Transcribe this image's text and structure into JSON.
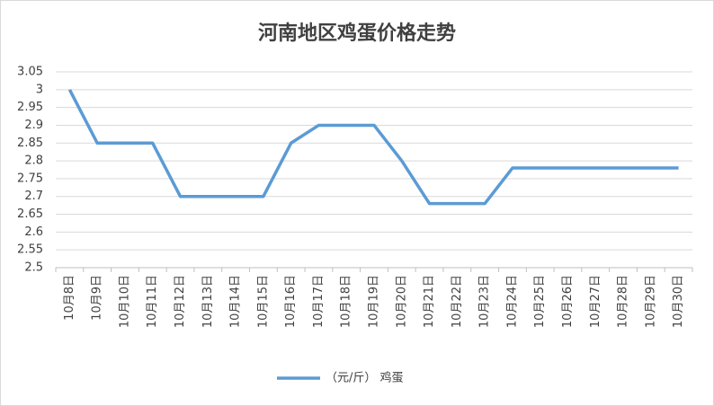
{
  "chart_data": {
    "type": "line",
    "title": "河南地区鸡蛋价格走势",
    "categories": [
      "10月8日",
      "10月9日",
      "10月10日",
      "10月11日",
      "10月12日",
      "10月13日",
      "10月14日",
      "10月15日",
      "10月16日",
      "10月17日",
      "10月18日",
      "10月19日",
      "10月20日",
      "10月21日",
      "10月22日",
      "10月23日",
      "10月24日",
      "10月25日",
      "10月26日",
      "10月27日",
      "10月28日",
      "10月29日",
      "10月30日"
    ],
    "series": [
      {
        "name": "（元/斤） 鸡蛋",
        "color": "#5b9bd5",
        "values": [
          3.0,
          2.85,
          2.85,
          2.85,
          2.7,
          2.7,
          2.7,
          2.7,
          2.85,
          2.9,
          2.9,
          2.9,
          2.8,
          2.68,
          2.68,
          2.68,
          2.78,
          2.78,
          2.78,
          2.78,
          2.78,
          2.78,
          2.78
        ]
      }
    ],
    "ylim": [
      2.5,
      3.05
    ],
    "yticks": [
      2.5,
      2.55,
      2.6,
      2.65,
      2.7,
      2.75,
      2.8,
      2.85,
      2.9,
      2.95,
      3,
      3.05
    ],
    "grid": true,
    "legend": "bottom"
  }
}
